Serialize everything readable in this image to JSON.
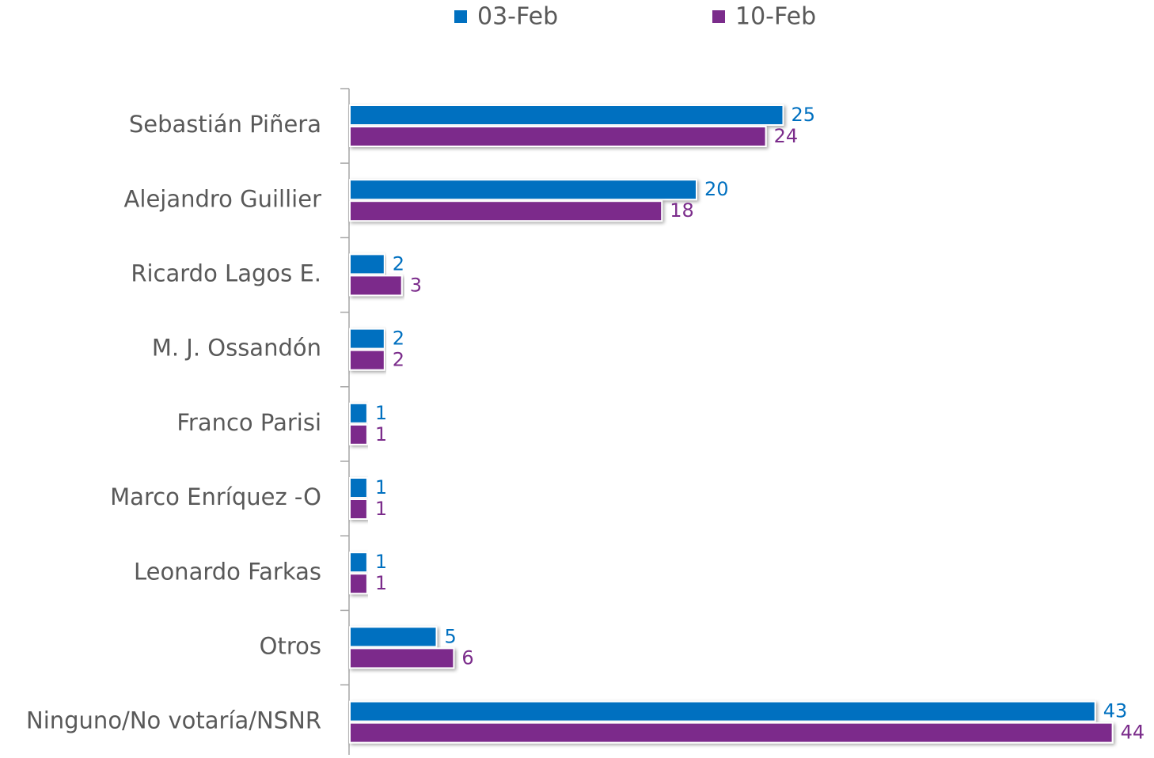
{
  "chart_data": {
    "type": "bar",
    "orientation": "horizontal",
    "categories": [
      "Sebastián Piñera",
      "Alejandro  Guillier",
      "Ricardo Lagos E.",
      "M. J. Ossandón",
      "Franco Parisi",
      "Marco Enríquez -O",
      "Leonardo Farkas",
      "Otros",
      "Ninguno/No votaría/NSNR"
    ],
    "series": [
      {
        "name": "03-Feb",
        "color": "#0070c0",
        "values": [
          25,
          20,
          2,
          2,
          1,
          1,
          1,
          5,
          43
        ]
      },
      {
        "name": "10-Feb",
        "color": "#7b2c8b",
        "values": [
          24,
          18,
          3,
          2,
          1,
          1,
          1,
          6,
          44
        ]
      }
    ],
    "legend": "top"
  }
}
